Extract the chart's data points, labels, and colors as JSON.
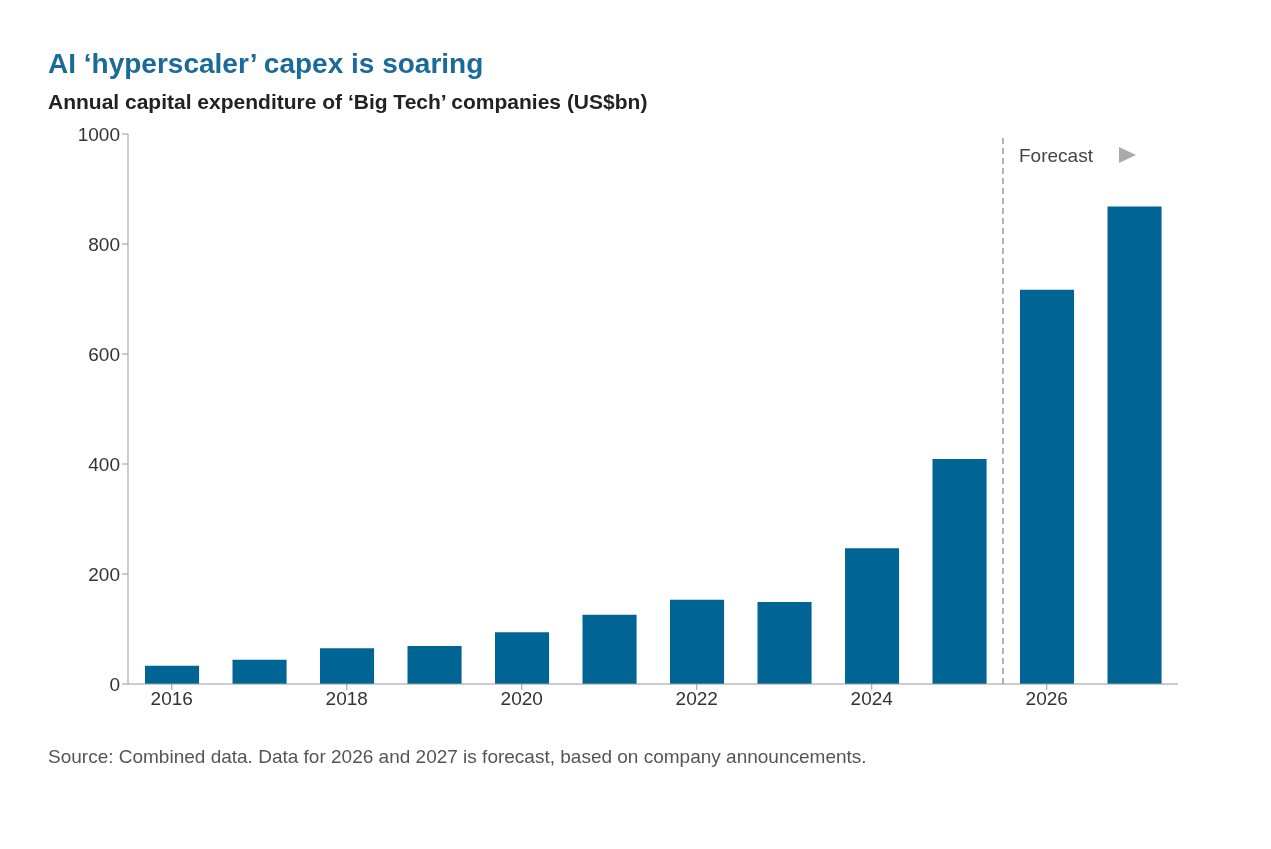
{
  "chart_data": {
    "type": "bar",
    "title": "AI ‘hyperscaler’ capex is soaring",
    "subtitle": "Annual capital expenditure of ‘Big Tech’ companies (US$bn)",
    "x": [
      2016,
      2017,
      2018,
      2019,
      2020,
      2021,
      2022,
      2023,
      2024,
      2025,
      2026,
      2027
    ],
    "values": [
      33,
      44,
      65,
      69,
      94,
      126,
      153,
      149,
      247,
      409,
      717,
      868
    ],
    "color": "#006494",
    "xlim": [
      2015.5,
      2027.5
    ],
    "xticks": [
      2016,
      2018,
      2020,
      2022,
      2024,
      2026
    ],
    "ylim": [
      0,
      1000
    ],
    "yticks": [
      0,
      200,
      400,
      600,
      800,
      1000
    ],
    "ref_lines": [
      {
        "axis": "x",
        "value": 2025.5,
        "label": "Forecast",
        "line_style": "dashed",
        "color": "#999999"
      }
    ],
    "annotations": [
      "Source: Combined data. Data for 2026 and 2027 is forecast, based on company announcements."
    ]
  }
}
